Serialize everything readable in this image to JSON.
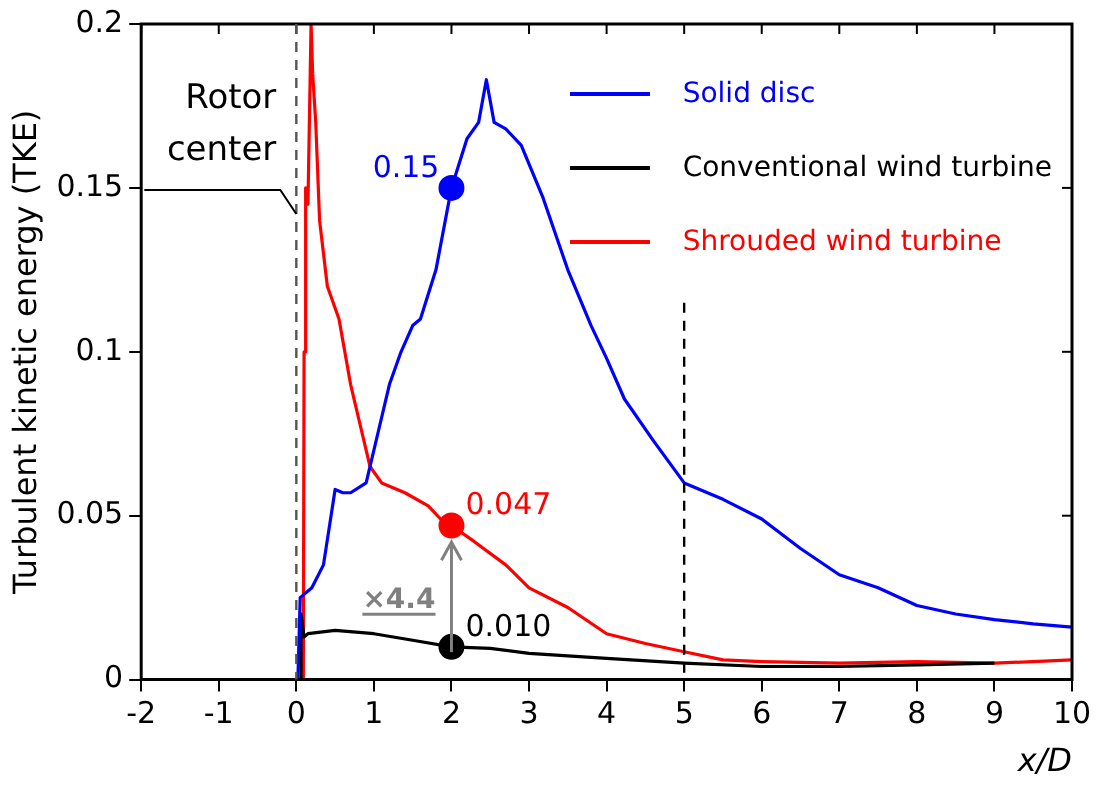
{
  "chart_data": {
    "type": "line",
    "xlabel": "x/D",
    "ylabel": "Turbulent kinetic energy (TKE)",
    "xlim": [
      -2,
      10
    ],
    "xticks": [
      -2,
      -1,
      0,
      1,
      2,
      3,
      4,
      5,
      6,
      7,
      8,
      9,
      10
    ],
    "ylim": [
      0,
      0.2
    ],
    "yticks": [
      0,
      0.05,
      0.1,
      0.15,
      0.2
    ],
    "grid": false,
    "legend": "top right",
    "marker": "none",
    "line_style": "solid",
    "series": [
      {
        "name": "Solid disc",
        "color": "#0000ff",
        "x": [
          0.02,
          0.05,
          0.1,
          0.2,
          0.35,
          0.5,
          0.6,
          0.7,
          0.9,
          1.05,
          1.2,
          1.35,
          1.5,
          1.6,
          1.8,
          2,
          2.2,
          2.35,
          2.45,
          2.55,
          2.7,
          2.9,
          3.18,
          3.5,
          3.8,
          4.0,
          4.23,
          4.6,
          5,
          5.5,
          6,
          6.5,
          7,
          7.5,
          8,
          8.5,
          9,
          9.5,
          10
        ],
        "values": [
          0,
          0.025,
          0.026,
          0.028,
          0.035,
          0.058,
          0.057,
          0.057,
          0.06,
          0.075,
          0.09,
          0.1,
          0.108,
          0.11,
          0.125,
          0.15,
          0.165,
          0.17,
          0.183,
          0.17,
          0.168,
          0.163,
          0.147,
          0.125,
          0.108,
          0.098,
          0.0856,
          0.073,
          0.06,
          0.055,
          0.049,
          0.04,
          0.032,
          0.028,
          0.0226,
          0.02,
          0.0183,
          0.017,
          0.016
        ]
      },
      {
        "name": "Conventional wind turbine",
        "color": "#000000",
        "x": [
          0.05,
          0.06,
          0.1,
          0.15,
          0.5,
          1,
          1.5,
          2,
          2.5,
          3,
          4,
          5,
          6,
          7,
          8,
          9
        ],
        "values": [
          0,
          0.02,
          0.013,
          0.014,
          0.015,
          0.014,
          0.012,
          0.01,
          0.0095,
          0.008,
          0.0065,
          0.005,
          0.004,
          0.004,
          0.0045,
          0.005
        ]
      },
      {
        "name": "Shrouded wind turbine",
        "color": "#ff0000",
        "x": [
          0.09,
          0.1,
          0.12,
          0.15,
          0.19,
          0.21,
          0.25,
          0.3,
          0.35,
          0.4,
          0.55,
          0.7,
          0.85,
          0.95,
          1.1,
          1.4,
          1.7,
          1.9,
          2,
          2.3,
          2.7,
          3,
          3.5,
          4,
          4.5,
          5,
          5.5,
          6,
          7,
          8,
          9,
          10
        ],
        "values": [
          0,
          0.1,
          0.15,
          0.145,
          0.2,
          0.185,
          0.17,
          0.14,
          0.13,
          0.12,
          0.11,
          0.09,
          0.075,
          0.065,
          0.06,
          0.057,
          0.053,
          0.048,
          0.047,
          0.042,
          0.035,
          0.028,
          0.022,
          0.014,
          0.011,
          0.0085,
          0.006,
          0.0055,
          0.005,
          0.0055,
          0.005,
          0.006
        ]
      },
      {
        "type": "scatter",
        "marker": "circle",
        "color": "#0000ff",
        "x": [
          2
        ],
        "values": [
          0.15
        ],
        "value_labels": [
          "0.15"
        ]
      },
      {
        "type": "scatter",
        "marker": "circle",
        "color": "#ff0000",
        "x": [
          2
        ],
        "values": [
          0.047
        ],
        "value_labels": [
          "0.047"
        ]
      },
      {
        "type": "scatter",
        "marker": "circle",
        "color": "#000000",
        "x": [
          2
        ],
        "values": [
          0.01
        ],
        "value_labels": [
          "0.010"
        ]
      }
    ],
    "ref_lines": [
      {
        "axis": "x",
        "value": 0,
        "label": "Rotor center",
        "line_style": "dashed",
        "color": "#555555"
      },
      {
        "axis": "x",
        "value": 5,
        "line_style": "dashed",
        "color": "#000000"
      }
    ],
    "annotations": [
      "×4.4"
    ]
  }
}
